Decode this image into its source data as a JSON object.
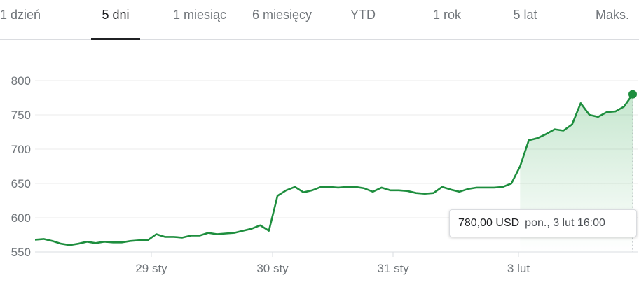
{
  "tabs": [
    {
      "label": "1 dzień",
      "active": false
    },
    {
      "label": "5 dni",
      "active": true
    },
    {
      "label": "1 miesiąc",
      "active": false
    },
    {
      "label": "6 miesięcy",
      "active": false
    },
    {
      "label": "YTD",
      "active": false
    },
    {
      "label": "1 rok",
      "active": false
    },
    {
      "label": "5 lat",
      "active": false
    },
    {
      "label": "Maks.",
      "active": false
    }
  ],
  "tooltip": {
    "price": "780,00 USD",
    "datetime": "pon., 3 lut 16:00"
  },
  "colors": {
    "line": "#1e8e3e",
    "area_top": "#34a853",
    "grid": "#ebebeb",
    "axis": "#dadce0",
    "text": "#70757a"
  },
  "chart_data": {
    "type": "area",
    "title": "",
    "xlabel": "",
    "ylabel": "",
    "ylim": [
      550,
      800
    ],
    "yticks": [
      550,
      600,
      650,
      700,
      750,
      800
    ],
    "x_tick_labels": [
      "29 sty",
      "30 sty",
      "31 sty",
      "3 lut"
    ],
    "grid": true,
    "series": [
      {
        "values": [
          568,
          569,
          566,
          562,
          560,
          562,
          565,
          563,
          565,
          564,
          564,
          566,
          567,
          567,
          576,
          572,
          572,
          571,
          574,
          574,
          578,
          576,
          577,
          578,
          581,
          584,
          589,
          581,
          632,
          640,
          645,
          637,
          640,
          645,
          645,
          644,
          645,
          645,
          643,
          638,
          644,
          640,
          640,
          639,
          636,
          635,
          636,
          645,
          641,
          638,
          642,
          644,
          644,
          644,
          645,
          650,
          675,
          713,
          716,
          722,
          729,
          727,
          736,
          767,
          750,
          747,
          754,
          755,
          762,
          780
        ]
      }
    ]
  }
}
